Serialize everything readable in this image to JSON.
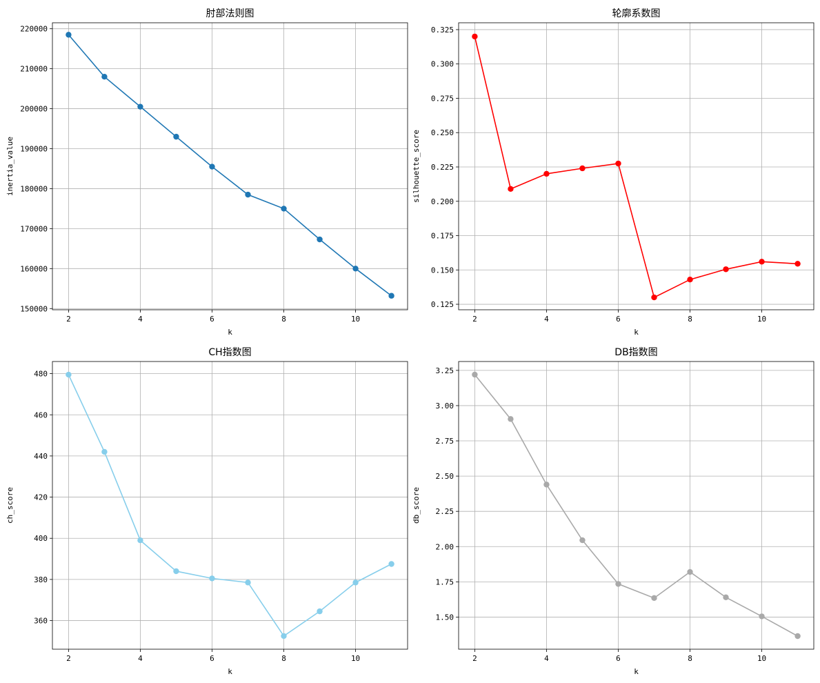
{
  "chart_data": [
    {
      "type": "line",
      "title": "肘部法则图",
      "xlabel": "k",
      "ylabel": "inertia_value",
      "color": "#1f77b4",
      "x": [
        2,
        3,
        4,
        5,
        6,
        7,
        8,
        9,
        10,
        11
      ],
      "values": [
        218500,
        208000,
        200500,
        193000,
        185500,
        178500,
        175000,
        167300,
        160000,
        153200
      ],
      "xlim": [
        1.55,
        11.45
      ],
      "ylim": [
        149700,
        221500
      ],
      "xticks": [
        2,
        4,
        6,
        8,
        10
      ],
      "yticks": [
        150000,
        160000,
        170000,
        180000,
        190000,
        200000,
        210000,
        220000
      ],
      "ytick_labels": [
        "150000",
        "160000",
        "170000",
        "180000",
        "190000",
        "200000",
        "210000",
        "220000"
      ],
      "grid": true
    },
    {
      "type": "line",
      "title": "轮廓系数图",
      "xlabel": "k",
      "ylabel": "silhouette_score",
      "color": "#ff0000",
      "x": [
        2,
        3,
        4,
        5,
        6,
        7,
        8,
        9,
        10,
        11
      ],
      "values": [
        0.32,
        0.209,
        0.22,
        0.224,
        0.2275,
        0.13,
        0.143,
        0.1505,
        0.156,
        0.1545
      ],
      "xlim": [
        1.55,
        11.45
      ],
      "ylim": [
        0.121,
        0.33
      ],
      "xticks": [
        2,
        4,
        6,
        8,
        10
      ],
      "yticks": [
        0.125,
        0.15,
        0.175,
        0.2,
        0.225,
        0.25,
        0.275,
        0.3,
        0.325
      ],
      "ytick_labels": [
        "0.125",
        "0.150",
        "0.175",
        "0.200",
        "0.225",
        "0.250",
        "0.275",
        "0.300",
        "0.325"
      ],
      "grid": true
    },
    {
      "type": "line",
      "title": "CH指数图",
      "xlabel": "k",
      "ylabel": "ch_score",
      "color": "#87ceeb",
      "x": [
        2,
        3,
        4,
        5,
        6,
        7,
        8,
        9,
        10,
        11
      ],
      "values": [
        479.5,
        442,
        399,
        384,
        380.5,
        378.5,
        352.5,
        364.5,
        378.5,
        387.5
      ],
      "xlim": [
        1.55,
        11.45
      ],
      "ylim": [
        346.1,
        485.9
      ],
      "xticks": [
        2,
        4,
        6,
        8,
        10
      ],
      "yticks": [
        360,
        380,
        400,
        420,
        440,
        460,
        480
      ],
      "ytick_labels": [
        "360",
        "380",
        "400",
        "420",
        "440",
        "460",
        "480"
      ],
      "grid": true
    },
    {
      "type": "line",
      "title": "DB指数图",
      "xlabel": "k",
      "ylabel": "db_score",
      "color": "#a9a9a9",
      "x": [
        2,
        3,
        4,
        5,
        6,
        7,
        8,
        9,
        10,
        11
      ],
      "values": [
        3.22,
        2.905,
        2.44,
        2.045,
        1.735,
        1.635,
        1.82,
        1.64,
        1.505,
        1.365
      ],
      "xlim": [
        1.55,
        11.45
      ],
      "ylim": [
        1.272,
        3.313
      ],
      "xticks": [
        2,
        4,
        6,
        8,
        10
      ],
      "yticks": [
        1.5,
        1.75,
        2.0,
        2.25,
        2.5,
        2.75,
        3.0,
        3.25
      ],
      "ytick_labels": [
        "1.50",
        "1.75",
        "2.00",
        "2.25",
        "2.50",
        "2.75",
        "3.00",
        "3.25"
      ],
      "grid": true
    }
  ]
}
